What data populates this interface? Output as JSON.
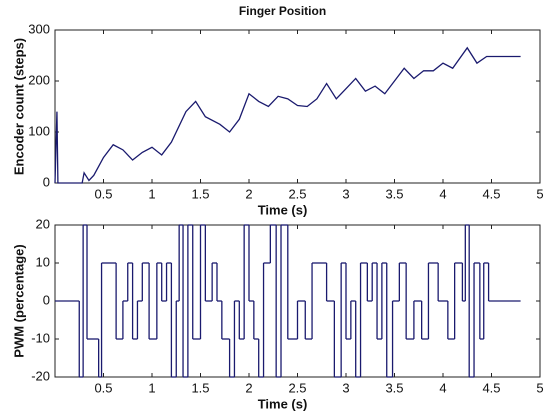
{
  "chart_data": [
    {
      "type": "line",
      "title": "Finger Position",
      "xlabel": "Time (s)",
      "ylabel": "Encoder count (steps)",
      "color": "#1a1a6e",
      "xlim": [
        0,
        5
      ],
      "xticks": [
        0.5,
        1,
        1.5,
        2,
        2.5,
        3,
        3.5,
        4,
        4.5,
        5
      ],
      "ylim": [
        0,
        300
      ],
      "yticks": [
        0,
        100,
        200,
        300
      ],
      "x": [
        0,
        0.02,
        0.03,
        0.28,
        0.3,
        0.35,
        0.4,
        0.5,
        0.6,
        0.7,
        0.8,
        0.9,
        1.0,
        1.1,
        1.2,
        1.35,
        1.45,
        1.55,
        1.7,
        1.8,
        1.9,
        2.0,
        2.1,
        2.2,
        2.3,
        2.4,
        2.5,
        2.6,
        2.7,
        2.8,
        2.9,
        3.0,
        3.1,
        3.2,
        3.3,
        3.4,
        3.5,
        3.6,
        3.7,
        3.8,
        3.9,
        4.0,
        4.1,
        4.25,
        4.35,
        4.45,
        4.8
      ],
      "values": [
        0,
        140,
        0,
        0,
        20,
        5,
        15,
        50,
        75,
        65,
        45,
        60,
        70,
        55,
        80,
        140,
        160,
        130,
        115,
        100,
        125,
        175,
        160,
        150,
        170,
        165,
        152,
        150,
        165,
        195,
        165,
        185,
        205,
        180,
        190,
        175,
        200,
        225,
        205,
        220,
        220,
        235,
        225,
        265,
        235,
        248,
        248
      ]
    },
    {
      "type": "step",
      "xlabel": "Time (s)",
      "ylabel": "PWM (percentage)",
      "color": "#1a1a6e",
      "xlim": [
        0,
        5
      ],
      "xticks": [
        0.5,
        1,
        1.5,
        2,
        2.5,
        3,
        3.5,
        4,
        4.5,
        5
      ],
      "ylim": [
        -20,
        20
      ],
      "yticks": [
        -20,
        -10,
        0,
        10,
        20
      ],
      "x": [
        0,
        0.25,
        0.29,
        0.33,
        0.45,
        0.48,
        0.63,
        0.7,
        0.75,
        0.8,
        0.85,
        0.9,
        0.97,
        1.05,
        1.1,
        1.15,
        1.2,
        1.25,
        1.28,
        1.32,
        1.37,
        1.42,
        1.5,
        1.55,
        1.62,
        1.67,
        1.72,
        1.8,
        1.85,
        1.9,
        1.95,
        2.0,
        2.05,
        2.1,
        2.15,
        2.22,
        2.28,
        2.33,
        2.4,
        2.5,
        2.58,
        2.65,
        2.8,
        2.88,
        2.95,
        3.0,
        3.05,
        3.1,
        3.15,
        3.22,
        3.27,
        3.32,
        3.37,
        3.42,
        3.48,
        3.55,
        3.62,
        3.7,
        3.78,
        3.85,
        3.95,
        4.05,
        4.12,
        4.2,
        4.23,
        4.27,
        4.32,
        4.38,
        4.42,
        4.47,
        4.8
      ],
      "values": [
        0,
        -20,
        20,
        -10,
        -20,
        10,
        -10,
        0,
        10,
        -10,
        0,
        10,
        -10,
        10,
        0,
        10,
        -20,
        0,
        20,
        -20,
        20,
        -10,
        20,
        0,
        10,
        0,
        -10,
        -20,
        0,
        -10,
        20,
        0,
        -10,
        -20,
        10,
        20,
        -20,
        20,
        -10,
        0,
        -10,
        10,
        0,
        -20,
        10,
        -10,
        0,
        -20,
        10,
        0,
        10,
        -10,
        10,
        -20,
        0,
        10,
        -10,
        0,
        -10,
        10,
        0,
        -10,
        10,
        0,
        20,
        -20,
        10,
        -10,
        10,
        0,
        0
      ]
    }
  ]
}
